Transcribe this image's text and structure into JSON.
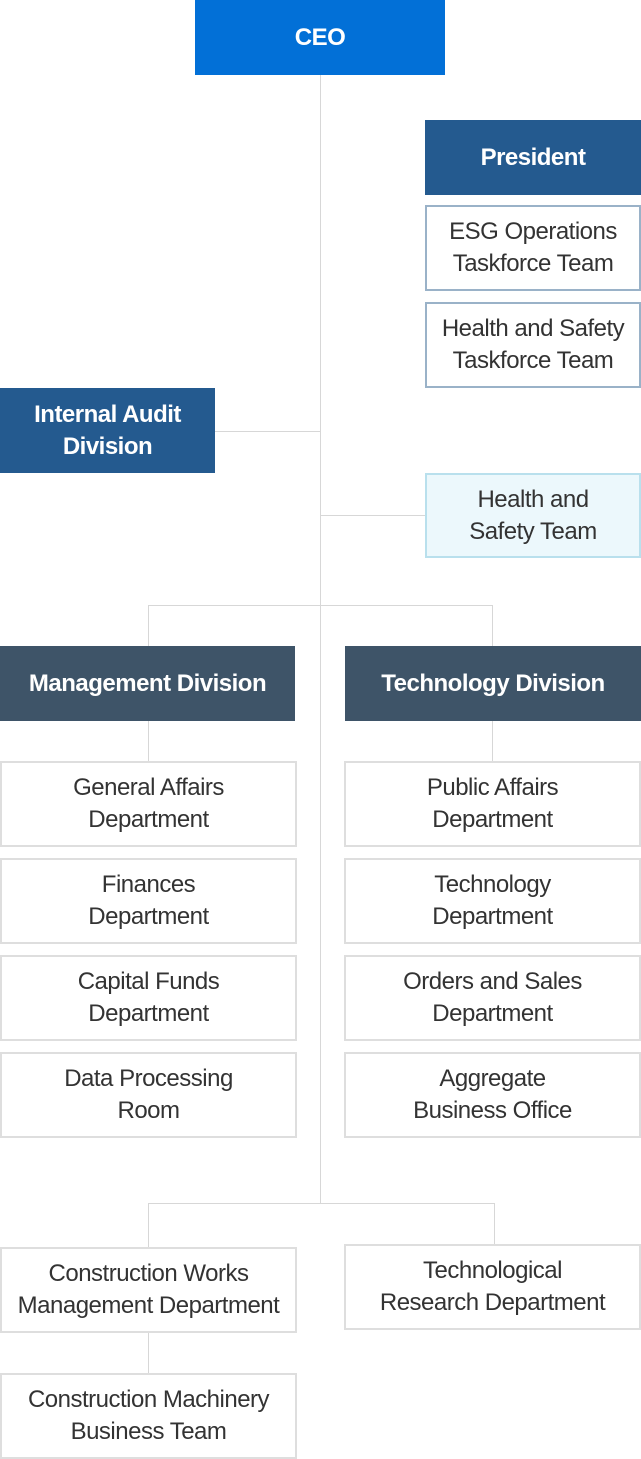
{
  "ceo": "CEO",
  "president": "President",
  "esg_team": "ESG Operations\nTaskforce Team",
  "hs_taskforce": "Health and Safety\nTaskforce Team",
  "internal_audit": "Internal Audit\nDivision",
  "hs_team": "Health and\nSafety Team",
  "management_division": {
    "title": "Management Division",
    "departments": [
      "General Affairs\nDepartment",
      "Finances\nDepartment",
      "Capital Funds\nDepartment",
      "Data Processing\nRoom"
    ]
  },
  "technology_division": {
    "title": "Technology Division",
    "departments": [
      "Public Affairs\nDepartment",
      "Technology\nDepartment",
      "Orders and Sales\nDepartment",
      "Aggregate\nBusiness Office"
    ]
  },
  "construction_works": "Construction Works\nManagement Department",
  "construction_machinery": "Construction Machinery\nBusiness Team",
  "tech_research": "Technological\nResearch Department"
}
